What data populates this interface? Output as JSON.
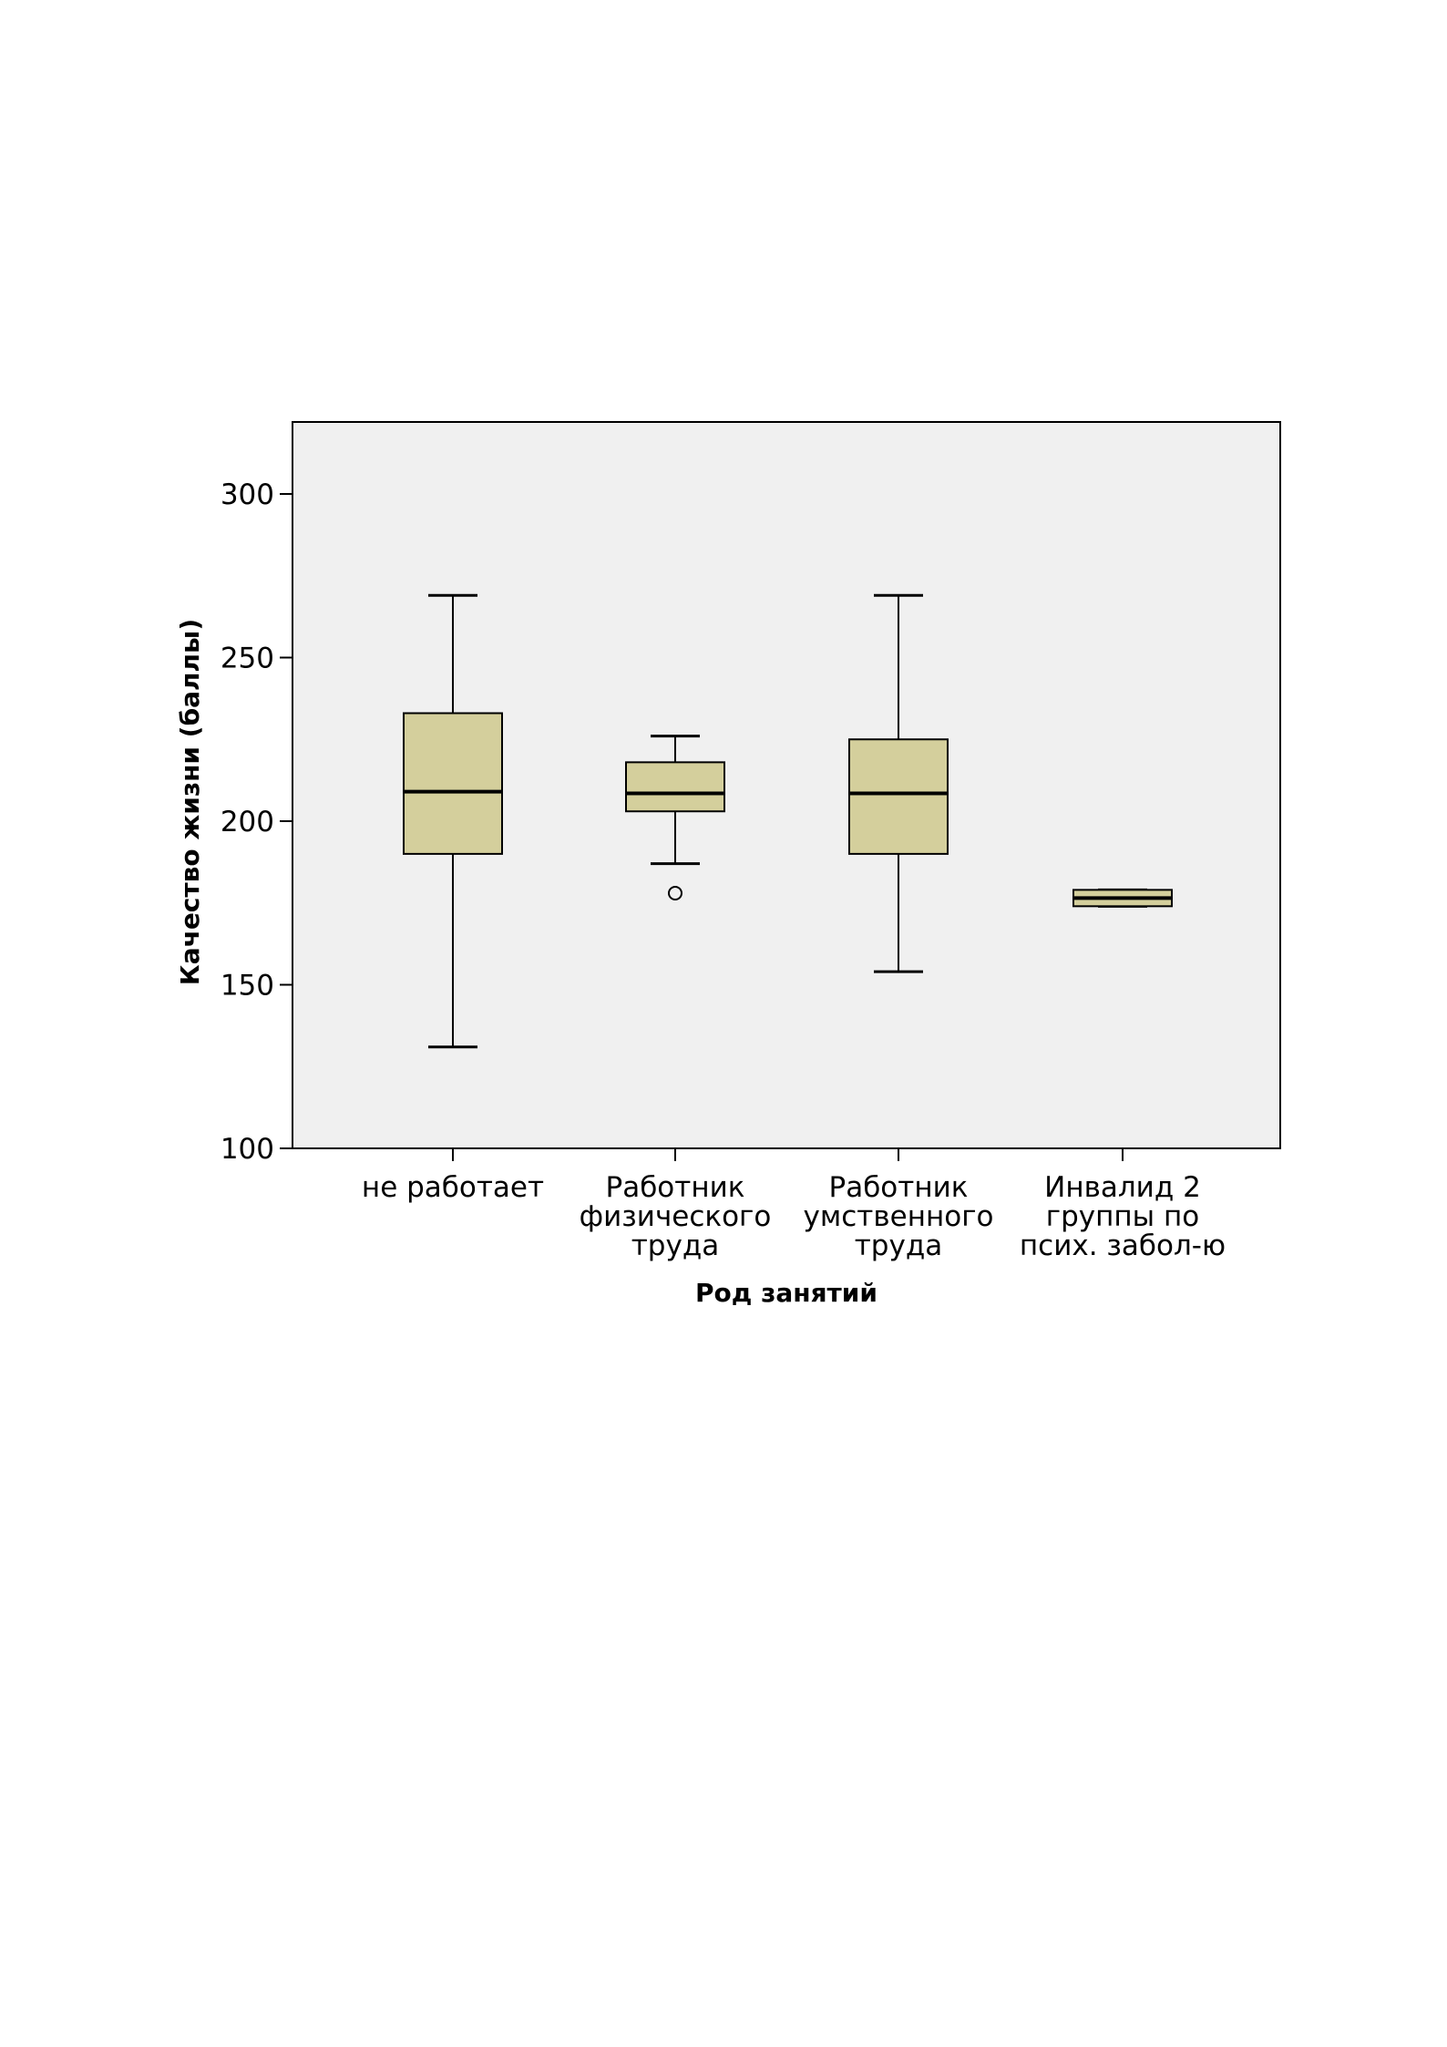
{
  "chart_data": {
    "type": "box",
    "xlabel": "Род занятий",
    "ylabel": "Качество жизни (баллы)",
    "ylim": [
      100,
      322
    ],
    "yticks": [
      100,
      150,
      200,
      250,
      300
    ],
    "categories": [
      [
        "не работает"
      ],
      [
        "Работник",
        "физического",
        "труда"
      ],
      [
        "Работник",
        "умственного",
        "труда"
      ],
      [
        "Инвалид 2",
        "группы по",
        "псих. забол-ю"
      ]
    ],
    "boxes": [
      {
        "whisker_low": 131,
        "q1": 190,
        "median": 209,
        "q3": 233,
        "whisker_high": 269,
        "outliers": []
      },
      {
        "whisker_low": 187,
        "q1": 203,
        "median": 208.5,
        "q3": 218,
        "whisker_high": 226,
        "outliers": [
          178
        ]
      },
      {
        "whisker_low": 154,
        "q1": 190,
        "median": 208.5,
        "q3": 225,
        "whisker_high": 269,
        "outliers": []
      },
      {
        "whisker_low": 174,
        "q1": 174,
        "median": 176.5,
        "q3": 179,
        "whisker_high": 179,
        "outliers": []
      }
    ],
    "colors": {
      "plot_background": "#f0f0f0",
      "box_fill": "#d4cf9c",
      "stroke": "#000000"
    },
    "grid": false
  }
}
